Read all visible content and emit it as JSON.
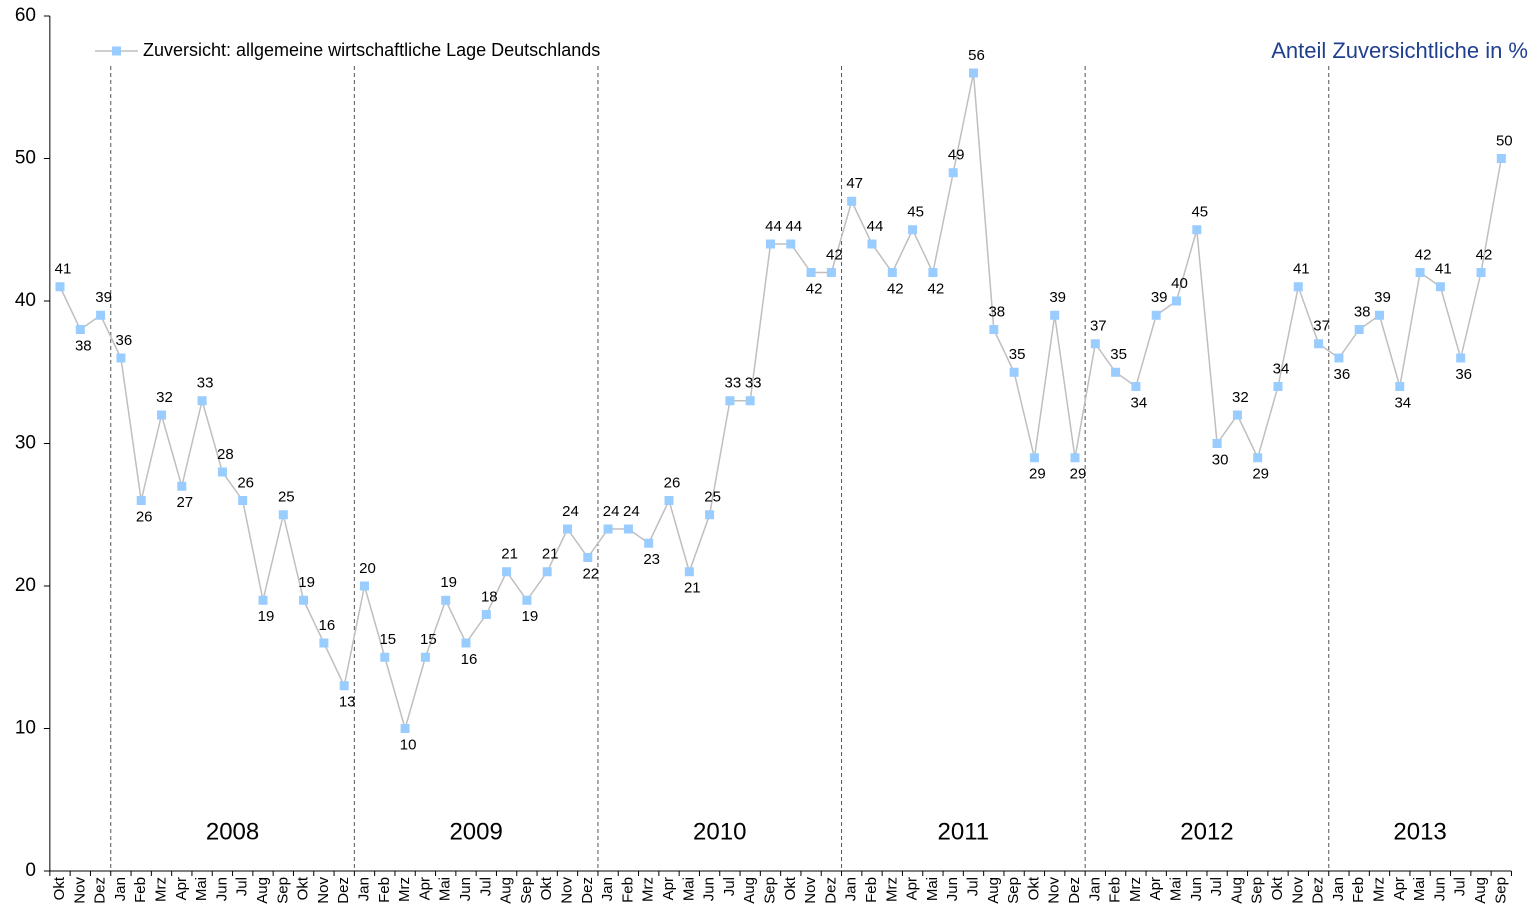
{
  "chart_data": {
    "type": "line",
    "annotation": "Anteil Zuversichtliche in %",
    "years": [
      "2008",
      "2009",
      "2010",
      "2011",
      "2012",
      "2013"
    ],
    "categories": [
      "Okt",
      "Nov",
      "Dez",
      "Jan",
      "Feb",
      "Mrz",
      "Apr",
      "Mai",
      "Jun",
      "Jul",
      "Aug",
      "Sep",
      "Okt",
      "Nov",
      "Dez",
      "Jan",
      "Feb",
      "Mrz",
      "Apr",
      "Mai",
      "Jun",
      "Jul",
      "Aug",
      "Sep",
      "Okt",
      "Nov",
      "Dez",
      "Jan",
      "Feb",
      "Mrz",
      "Apr",
      "Mai",
      "Jun",
      "Jul",
      "Aug",
      "Sep",
      "Okt",
      "Nov",
      "Dez",
      "Jan",
      "Feb",
      "Mrz",
      "Apr",
      "Mai",
      "Jun",
      "Jul",
      "Aug",
      "Sep",
      "Okt",
      "Nov",
      "Dez",
      "Jan",
      "Feb",
      "Mrz",
      "Apr",
      "Mai",
      "Jun",
      "Jul",
      "Aug",
      "Sep",
      "Okt",
      "Nov",
      "Dez",
      "Jan",
      "Feb",
      "Mrz",
      "Apr",
      "Mai",
      "Jun",
      "Jul",
      "Aug",
      "Sep"
    ],
    "series": [
      {
        "name": "Zuversicht: allgemeine wirtschaftliche Lage Deutschlands",
        "color": "#99ccff",
        "line_color": "#bfbfbf",
        "values": [
          41,
          38,
          39,
          36,
          26,
          32,
          27,
          33,
          28,
          26,
          19,
          25,
          19,
          16,
          13,
          20,
          15,
          10,
          15,
          19,
          16,
          18,
          21,
          19,
          21,
          24,
          22,
          24,
          24,
          23,
          26,
          21,
          25,
          33,
          33,
          44,
          44,
          42,
          42,
          47,
          44,
          42,
          45,
          42,
          49,
          56,
          38,
          35,
          29,
          39,
          29,
          37,
          35,
          34,
          39,
          40,
          45,
          30,
          32,
          29,
          34,
          41,
          37,
          36,
          38,
          39,
          34,
          42,
          41,
          36,
          42,
          50
        ]
      }
    ],
    "ylim": [
      0,
      60
    ],
    "yticks": [
      0,
      10,
      20,
      30,
      40,
      50,
      60
    ],
    "grid": false
  }
}
